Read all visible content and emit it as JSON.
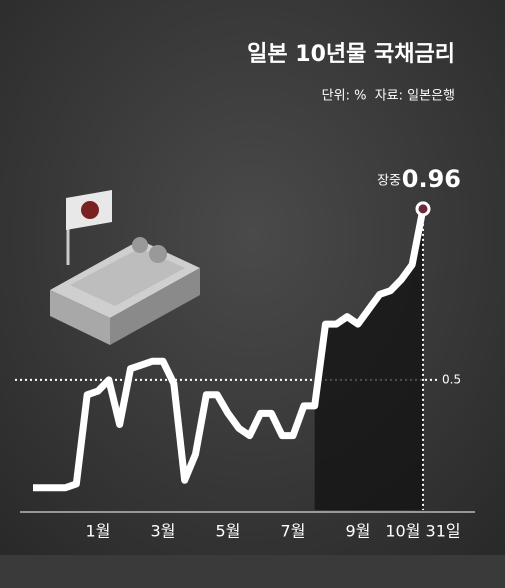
{
  "chart_data": {
    "type": "line",
    "title": "일본 10년물 국채금리",
    "subtitle": "단위: %  자료: 일본은행",
    "annotation": "장중",
    "categories": [
      null,
      null,
      null,
      null,
      null,
      null,
      "1월",
      null,
      null,
      null,
      null,
      null,
      "3월",
      null,
      null,
      null,
      null,
      null,
      "5월",
      null,
      null,
      null,
      null,
      null,
      "7월",
      null,
      null,
      null,
      null,
      null,
      "9월",
      null,
      null,
      null,
      null,
      null,
      "10월 31일"
    ],
    "series": [
      {
        "name": "일본 10년물 국채금리",
        "color": "#ffffff",
        "values": [
          0.21,
          0.21,
          0.21,
          0.21,
          0.22,
          0.46,
          0.47,
          0.5,
          0.38,
          0.53,
          0.54,
          0.55,
          0.55,
          0.49,
          0.23,
          0.3,
          0.46,
          0.46,
          0.41,
          0.37,
          0.35,
          0.41,
          0.41,
          0.35,
          0.35,
          0.43,
          0.43,
          0.65,
          0.65,
          0.67,
          0.65,
          0.69,
          0.73,
          0.74,
          0.77,
          0.81,
          0.96
        ]
      }
    ],
    "ylim": [
      0.15,
      1.0
    ],
    "yticks": [
      0.5
    ],
    "grid": true
  }
}
